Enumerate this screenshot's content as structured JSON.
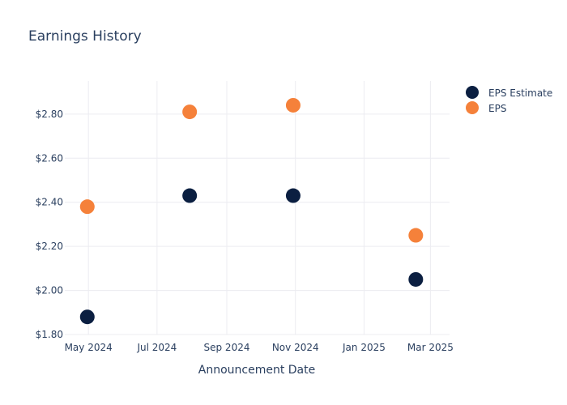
{
  "chart_data": {
    "type": "scatter",
    "title": "Earnings History",
    "xlabel": "Announcement Date",
    "ylabel": "",
    "x_ticks": [
      {
        "date": "2024-05-01",
        "label": "May 2024"
      },
      {
        "date": "2024-07-01",
        "label": "Jul 2024"
      },
      {
        "date": "2024-09-01",
        "label": "Sep 2024"
      },
      {
        "date": "2024-11-01",
        "label": "Nov 2024"
      },
      {
        "date": "2025-01-01",
        "label": "Jan 2025"
      },
      {
        "date": "2025-03-01",
        "label": "Mar 2025"
      }
    ],
    "y_ticks": [
      {
        "value": 1.8,
        "label": "$1.80"
      },
      {
        "value": 2.0,
        "label": "$2.00"
      },
      {
        "value": 2.2,
        "label": "$2.20"
      },
      {
        "value": 2.4,
        "label": "$2.40"
      },
      {
        "value": 2.6,
        "label": "$2.60"
      },
      {
        "value": 2.8,
        "label": "$2.80"
      }
    ],
    "xlim": [
      "2024-04-10",
      "2025-03-18"
    ],
    "ylim": [
      1.8,
      2.95
    ],
    "grid": true,
    "legend_position": "top-right",
    "series": [
      {
        "name": "EPS Estimate",
        "color": "#0b1f41",
        "points": [
          {
            "x": "2024-04-30",
            "y": 1.88
          },
          {
            "x": "2024-07-30",
            "y": 2.43
          },
          {
            "x": "2024-10-30",
            "y": 2.43
          },
          {
            "x": "2025-02-16",
            "y": 2.05
          }
        ]
      },
      {
        "name": "EPS",
        "color": "#f5813a",
        "points": [
          {
            "x": "2024-04-30",
            "y": 2.38
          },
          {
            "x": "2024-07-30",
            "y": 2.81
          },
          {
            "x": "2024-10-30",
            "y": 2.84
          },
          {
            "x": "2025-02-16",
            "y": 2.25
          }
        ]
      }
    ]
  }
}
